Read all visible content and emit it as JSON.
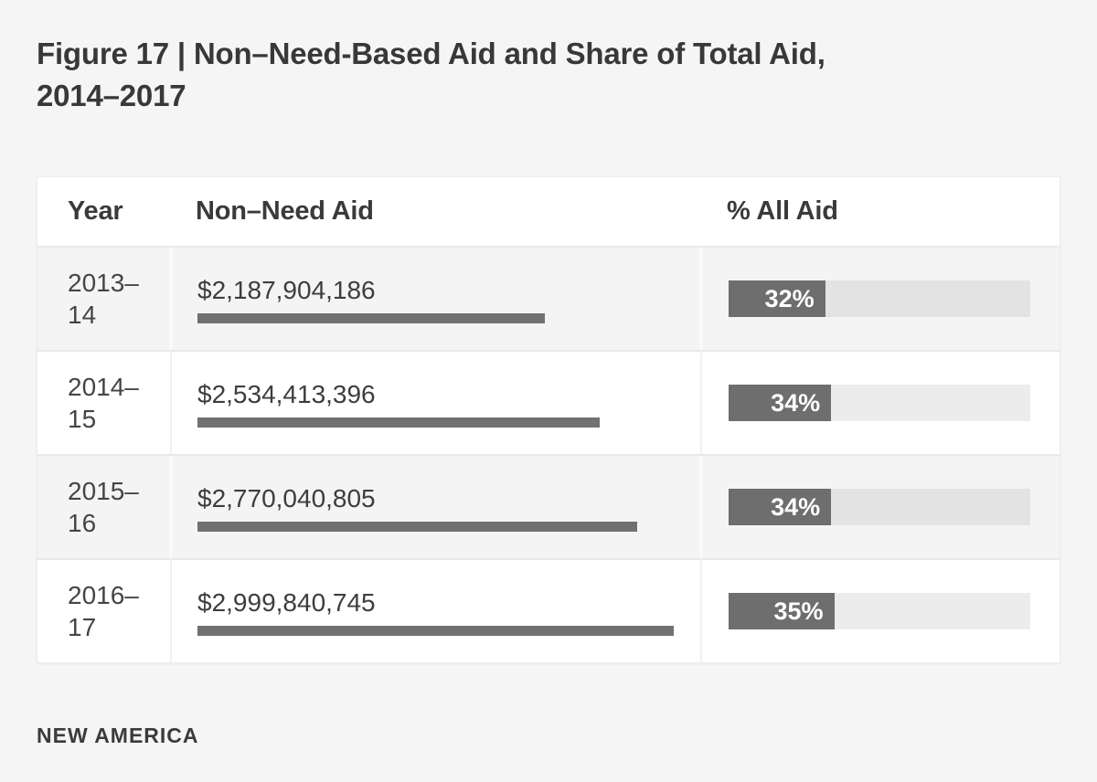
{
  "page": {
    "background_color": "#f5f5f5",
    "title_line1": "Figure 17 | Non–Need-Based Aid and Share of Total Aid,",
    "title_line2": "2014–2017",
    "footer_brand": "NEW AMERICA"
  },
  "chart_data": {
    "type": "table",
    "title": "Figure 17 | Non–Need-Based Aid and Share of Total Aid, 2014–2017",
    "columns": [
      "Year",
      "Non–Need Aid",
      "% All Aid"
    ],
    "rows": [
      {
        "year": "2013–14",
        "non_need_aid_label": "$2,187,904,186",
        "non_need_aid_value": 2187904186,
        "pct_all_aid_label": "32%",
        "pct_all_aid_value": 32
      },
      {
        "year": "2014–15",
        "non_need_aid_label": "$2,534,413,396",
        "non_need_aid_value": 2534413396,
        "pct_all_aid_label": "34%",
        "pct_all_aid_value": 34
      },
      {
        "year": "2015–16",
        "non_need_aid_label": "$2,770,040,805",
        "non_need_aid_value": 2770040805,
        "pct_all_aid_label": "34%",
        "pct_all_aid_value": 34
      },
      {
        "year": "2016–17",
        "non_need_aid_label": "$2,999,840,745",
        "non_need_aid_value": 2999840745,
        "pct_all_aid_label": "35%",
        "pct_all_aid_value": 35
      }
    ],
    "value_bar_scale": "bar width proportional to non_need_aid_value; maximum value spans full bar length",
    "pct_bar_axis_range": [
      0,
      100
    ],
    "colors": {
      "value_bar_fill": "#717171",
      "pct_bar_fill": "#6e6e6e",
      "pct_bar_track": "#e7e7e7",
      "row_alt_background": "#f4f4f4",
      "title_text": "#383838",
      "body_text": "#3d3d3d"
    }
  }
}
